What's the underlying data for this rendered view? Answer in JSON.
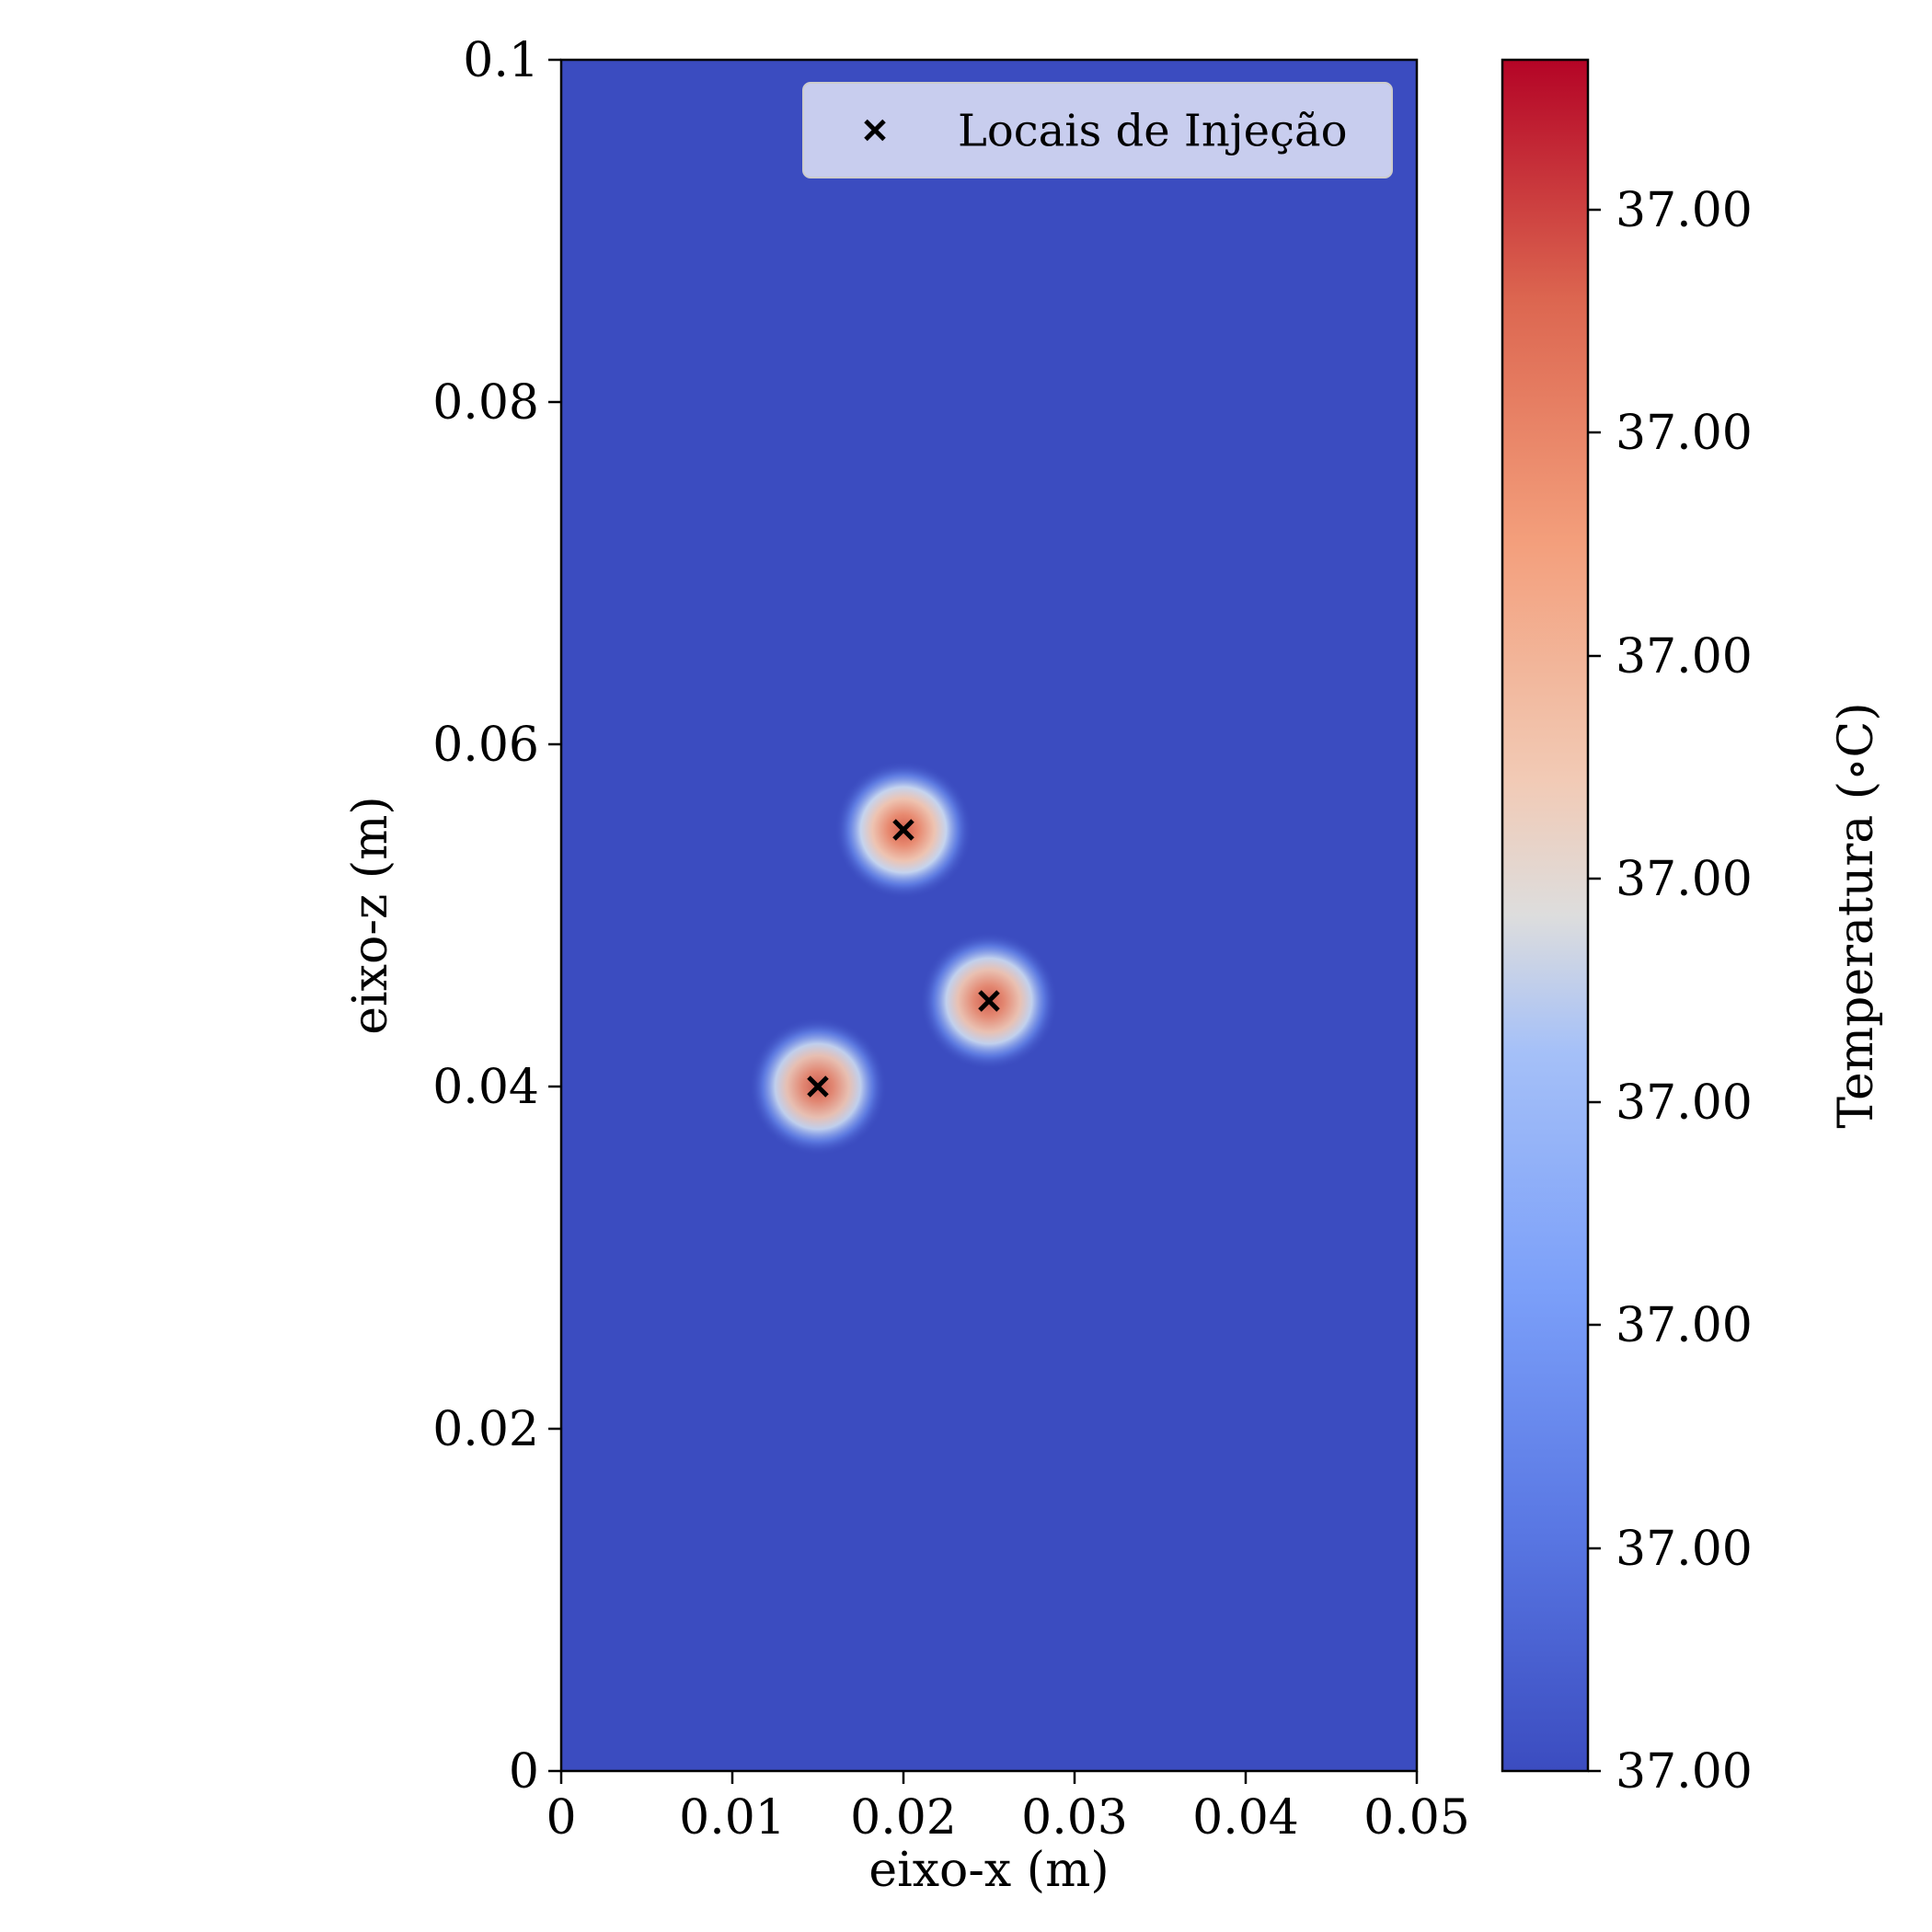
{
  "chart_data": {
    "type": "heatmap",
    "title": "",
    "xlabel": "eixo-x (m)",
    "ylabel": "eixo-z (m)",
    "xlim": [
      0,
      0.05
    ],
    "ylim": [
      0,
      0.1
    ],
    "x_ticks": [
      0,
      0.01,
      0.02,
      0.03,
      0.04,
      0.05
    ],
    "x_tick_labels": [
      "0",
      "0.01",
      "0.02",
      "0.03",
      "0.04",
      "0.05"
    ],
    "y_ticks": [
      0,
      0.02,
      0.04,
      0.06,
      0.08,
      0.1
    ],
    "y_tick_labels": [
      "0",
      "0.02",
      "0.04",
      "0.06",
      "0.08",
      "0.1"
    ],
    "colormap": "coolwarm",
    "colorbar_label": "Temperatura (∘C)",
    "colorbar_tick_labels": [
      "37.00",
      "37.00",
      "37.00",
      "37.00",
      "37.00",
      "37.00",
      "37.00",
      "37.00"
    ],
    "baseline_value": 37.0,
    "grid": false,
    "legend": {
      "position": "top-right",
      "entries": [
        "Locais de Injeção"
      ]
    },
    "series": [
      {
        "name": "Locais de Injeção",
        "marker": "x",
        "color": "#000000",
        "points": [
          {
            "x": 0.015,
            "y": 0.04,
            "intensity": 0.78
          },
          {
            "x": 0.02,
            "y": 0.055,
            "intensity": 0.9
          },
          {
            "x": 0.025,
            "y": 0.045,
            "intensity": 0.82
          }
        ]
      }
    ],
    "colors": {
      "background": "#3b4cc0",
      "hot": "#b40426",
      "neutral": "#dddddd"
    }
  }
}
